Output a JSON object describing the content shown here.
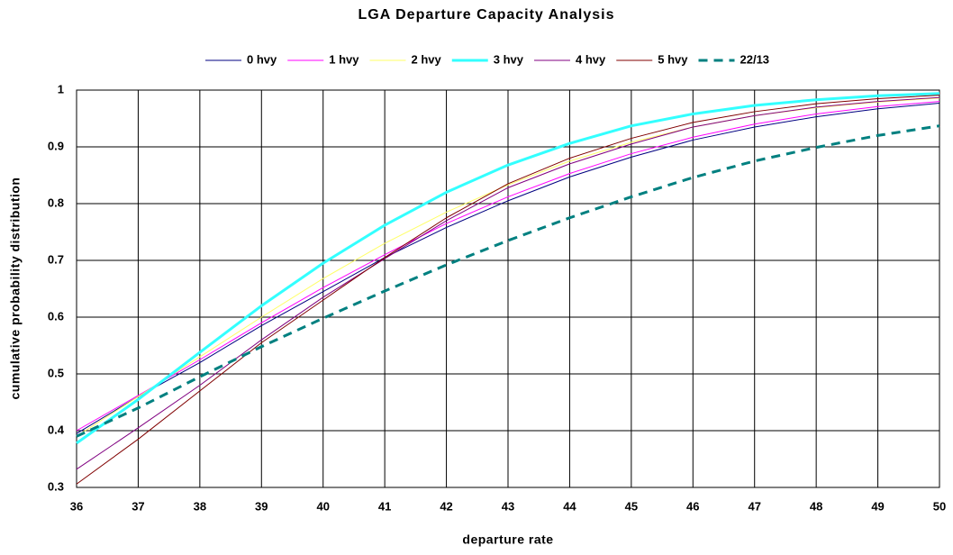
{
  "chart_data": {
    "type": "line",
    "title": "LGA Departure Capacity Analysis",
    "xlabel": "departure rate",
    "ylabel": "cumulative probability distribution",
    "x": [
      36,
      37,
      38,
      39,
      40,
      41,
      42,
      43,
      44,
      45,
      46,
      47,
      48,
      49,
      50
    ],
    "xlim": [
      36,
      50
    ],
    "xticks": [
      36,
      37,
      38,
      39,
      40,
      41,
      42,
      43,
      44,
      45,
      46,
      47,
      48,
      49,
      50
    ],
    "ylim": [
      0.3,
      1
    ],
    "yticks": [
      0.3,
      0.4,
      0.5,
      0.6,
      0.7,
      0.8,
      0.9,
      1
    ],
    "grid": true,
    "legend": "top",
    "series": [
      {
        "name": "0 hvy",
        "color": "#000080",
        "line_width": 1,
        "values": [
          0.395,
          0.46,
          0.52,
          0.585,
          0.645,
          0.705,
          0.758,
          0.805,
          0.847,
          0.882,
          0.912,
          0.935,
          0.953,
          0.967,
          0.977
        ]
      },
      {
        "name": "1 hvy",
        "color": "#ff00ff",
        "line_width": 1,
        "values": [
          0.4,
          0.462,
          0.525,
          0.59,
          0.652,
          0.71,
          0.765,
          0.812,
          0.853,
          0.888,
          0.917,
          0.94,
          0.958,
          0.971,
          0.98
        ]
      },
      {
        "name": "2 hvy",
        "color": "#ffff66",
        "line_width": 1,
        "values": [
          0.39,
          0.46,
          0.53,
          0.6,
          0.668,
          0.73,
          0.785,
          0.833,
          0.875,
          0.908,
          0.935,
          0.955,
          0.969,
          0.979,
          0.986
        ]
      },
      {
        "name": "3 hvy",
        "color": "#33ffff",
        "line_width": 3,
        "values": [
          0.378,
          0.455,
          0.538,
          0.62,
          0.695,
          0.762,
          0.82,
          0.868,
          0.906,
          0.937,
          0.958,
          0.973,
          0.983,
          0.99,
          0.994
        ]
      },
      {
        "name": "4 hvy",
        "color": "#800080",
        "line_width": 1,
        "values": [
          0.332,
          0.405,
          0.48,
          0.56,
          0.635,
          0.703,
          0.77,
          0.828,
          0.87,
          0.905,
          0.935,
          0.955,
          0.97,
          0.98,
          0.987
        ]
      },
      {
        "name": "5 hvy",
        "color": "#800000",
        "line_width": 1,
        "values": [
          0.306,
          0.385,
          0.47,
          0.555,
          0.63,
          0.705,
          0.775,
          0.835,
          0.88,
          0.915,
          0.943,
          0.962,
          0.976,
          0.985,
          0.991
        ]
      },
      {
        "name": "22/13",
        "color": "#008080",
        "line_width": 3,
        "dashed": true,
        "values": [
          0.39,
          0.44,
          0.495,
          0.548,
          0.598,
          0.646,
          0.692,
          0.735,
          0.775,
          0.812,
          0.846,
          0.875,
          0.899,
          0.92,
          0.937
        ]
      }
    ]
  }
}
